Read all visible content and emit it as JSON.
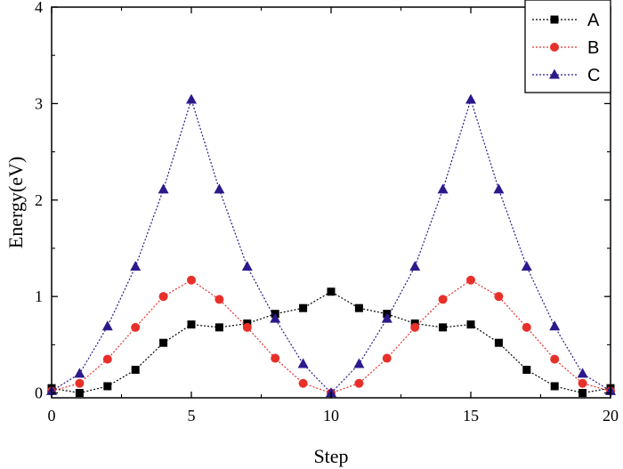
{
  "chart_data": {
    "type": "line",
    "title": "",
    "xlabel": "Step",
    "ylabel": "Energy(eV)",
    "xlim": [
      0,
      20
    ],
    "ylim": [
      -0.05,
      4
    ],
    "xticks": [
      0,
      5,
      10,
      15,
      20
    ],
    "yticks": [
      0,
      1,
      2,
      3,
      4
    ],
    "xtick_labels": [
      "0",
      "5",
      "10",
      "15",
      "20"
    ],
    "ytick_labels": [
      "0",
      "1",
      "2",
      "3",
      "4"
    ],
    "legend_position": "top-right",
    "x": [
      0,
      1,
      2,
      3,
      4,
      5,
      6,
      7,
      8,
      9,
      10,
      11,
      12,
      13,
      14,
      15,
      16,
      17,
      18,
      19,
      20
    ],
    "series": [
      {
        "name": "A",
        "color": "#000000",
        "marker": "square",
        "values": [
          0.05,
          0.0,
          0.07,
          0.24,
          0.52,
          0.71,
          0.68,
          0.72,
          0.82,
          0.88,
          1.05,
          0.88,
          0.82,
          0.72,
          0.68,
          0.71,
          0.52,
          0.24,
          0.07,
          0.0,
          0.05
        ]
      },
      {
        "name": "B",
        "color": "#e8302a",
        "marker": "circle",
        "values": [
          0.02,
          0.1,
          0.35,
          0.68,
          1.0,
          1.17,
          0.97,
          0.68,
          0.36,
          0.1,
          0.0,
          0.1,
          0.36,
          0.68,
          0.97,
          1.17,
          1.0,
          0.68,
          0.35,
          0.1,
          0.02
        ]
      },
      {
        "name": "C",
        "color": "#2b1a8c",
        "marker": "triangle",
        "values": [
          0.02,
          0.2,
          0.69,
          1.31,
          2.11,
          3.04,
          2.11,
          1.31,
          0.77,
          0.3,
          0.0,
          0.3,
          0.77,
          1.31,
          2.11,
          3.04,
          2.11,
          1.31,
          0.69,
          0.2,
          0.02
        ]
      }
    ]
  }
}
